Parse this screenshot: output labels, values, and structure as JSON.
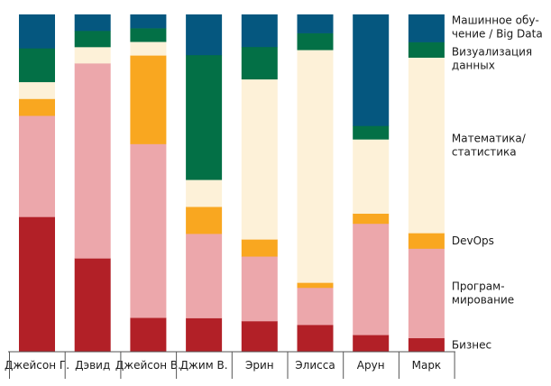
{
  "chart_data": {
    "type": "bar",
    "stacked": true,
    "normalized": true,
    "title": "",
    "xlabel": "",
    "ylabel": "",
    "ylim": [
      0,
      100
    ],
    "grid": false,
    "legend_position": "right",
    "categories": [
      "Джейсон Г.",
      "Дэвид",
      "Джейсон В.",
      "Джим В.",
      "Эрин",
      "Элисса",
      "Арун",
      "Марк"
    ],
    "series": [
      {
        "name": "Бизнес",
        "color": "#b22027",
        "values": [
          40,
          23,
          10,
          10,
          9,
          8,
          5,
          4
        ]
      },
      {
        "name": "Программирование",
        "color": "#eca7ab",
        "values": [
          30,
          48,
          51,
          25,
          19,
          11,
          33,
          26
        ]
      },
      {
        "name": "DevOps",
        "color": "#f9a720",
        "values": [
          5,
          0,
          26,
          8,
          5,
          1.5,
          3,
          4.5
        ]
      },
      {
        "name": "Математика/статистика",
        "color": "#fdf1d8",
        "values": [
          5,
          4,
          4,
          8,
          47,
          69,
          22,
          51
        ]
      },
      {
        "name": "Визуализация данных",
        "color": "#037046",
        "values": [
          10,
          4,
          4,
          37,
          9.5,
          5,
          4,
          4.5
        ]
      },
      {
        "name": "Машинное обучение / Big Data",
        "color": "#05577f",
        "values": [
          10,
          4,
          4,
          12,
          9.5,
          5.5,
          33,
          8
        ]
      }
    ],
    "legend_entries": [
      {
        "series": "Машинное обучение / Big Data",
        "lines": [
          "Машинное обу-",
          "чение / Big Data"
        ]
      },
      {
        "series": "Визуализация данных",
        "lines": [
          "Визуализация",
          "данных"
        ]
      },
      {
        "series": "Математика/статистика",
        "lines": [
          "Математика/",
          "статистика"
        ]
      },
      {
        "series": "DevOps",
        "lines": [
          "DevOps"
        ]
      },
      {
        "series": "Программирование",
        "lines": [
          "Програм-",
          "мирование"
        ]
      },
      {
        "series": "Бизнес",
        "lines": [
          "Бизнес"
        ]
      }
    ]
  }
}
